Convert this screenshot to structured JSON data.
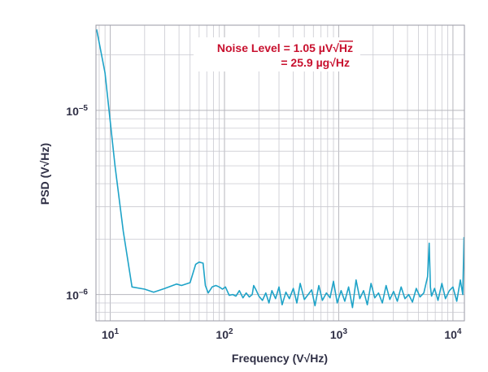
{
  "chart_data": {
    "type": "line",
    "title": "",
    "xlabel": "Frequency (V√Hz)",
    "ylabel": "PSD (V√Hz)",
    "xscale": "log",
    "yscale": "log",
    "xlim": [
      7.5,
      12600
    ],
    "ylim": [
      7.2e-07,
      2.9e-05
    ],
    "grid": true,
    "x_ticks": [
      {
        "value": 10,
        "base": "10",
        "exp": "1"
      },
      {
        "value": 100,
        "base": "10",
        "exp": "2"
      },
      {
        "value": 1000,
        "base": "10",
        "exp": "3"
      },
      {
        "value": 10000,
        "base": "10",
        "exp": "4"
      }
    ],
    "y_ticks": [
      {
        "value": 1e-06,
        "base": "10",
        "exp": "–6"
      },
      {
        "value": 1e-05,
        "base": "10",
        "exp": "–5"
      }
    ],
    "annotation": {
      "line1_prefix": "Noise Level = 1.05 µV",
      "line1_sqrt": "√",
      "line1_unit": "Hz",
      "line2_prefix": "= 25.9 µg",
      "line2_sqrt": "√",
      "line2_unit": "Hz",
      "color": "#c8102e"
    },
    "series": [
      {
        "color": "#1ea3c8",
        "x": [
          7.6,
          9,
          11,
          13,
          15.5,
          20,
          24,
          30,
          38,
          42,
          50,
          56,
          60,
          65,
          68,
          72,
          78,
          84,
          90,
          96,
          102,
          110,
          118,
          126,
          135,
          145,
          155,
          165,
          175,
          180,
          190,
          200,
          215,
          230,
          245,
          260,
          280,
          300,
          320,
          345,
          370,
          400,
          430,
          460,
          500,
          540,
          580,
          620,
          670,
          720,
          780,
          840,
          900,
          970,
          1050,
          1130,
          1220,
          1320,
          1420,
          1530,
          1650,
          1780,
          1920,
          2070,
          2230,
          2410,
          2600,
          2800,
          3020,
          3260,
          3520,
          3800,
          4100,
          4420,
          4770,
          5150,
          5560,
          6000,
          6200,
          6350,
          6500,
          6900,
          7400,
          8000,
          8600,
          9300,
          10000,
          10800,
          11600,
          12200,
          12500
        ],
        "y": [
          2.75e-05,
          1.6e-05,
          5e-06,
          2.2e-06,
          1.1e-06,
          1.07e-06,
          1.03e-06,
          1.08e-06,
          1.14e-06,
          1.12e-06,
          1.16e-06,
          1.46e-06,
          1.5e-06,
          1.48e-06,
          1.12e-06,
          1.02e-06,
          1.1e-06,
          1.12e-06,
          1.1e-06,
          1.07e-06,
          1.1e-06,
          9.9e-07,
          1e-06,
          9.8e-07,
          1.05e-06,
          9.6e-07,
          1.02e-06,
          9.7e-07,
          1e-06,
          1.12e-06,
          1.05e-06,
          9.8e-07,
          9.3e-07,
          1.02e-06,
          9e-07,
          1.05e-06,
          9.5e-07,
          1.1e-06,
          8.8e-07,
          1.03e-06,
          9.5e-07,
          1.08e-06,
          9e-07,
          1.15e-06,
          9.4e-07,
          1e-06,
          1.06e-06,
          8.7e-07,
          1.12e-06,
          9.3e-07,
          1.02e-06,
          9.6e-07,
          1.18e-06,
          9e-07,
          1.05e-06,
          9.2e-07,
          1.1e-06,
          8.5e-07,
          1.2e-06,
          9.5e-07,
          1.05e-06,
          8.8e-07,
          1.15e-06,
          9.6e-07,
          1.02e-06,
          9e-07,
          1.12e-06,
          9.4e-07,
          1.04e-06,
          9.2e-07,
          1.1e-06,
          9.5e-07,
          1e-06,
          9.1e-07,
          1.08e-06,
          9.7e-07,
          1.02e-06,
          1.25e-06,
          1.9e-06,
          1.1e-06,
          9.8e-07,
          1.08e-06,
          9.3e-07,
          1.15e-06,
          9.5e-07,
          1.05e-06,
          1.1e-06,
          9.2e-07,
          1.2e-06,
          1e-06,
          2.05e-06
        ]
      }
    ]
  }
}
